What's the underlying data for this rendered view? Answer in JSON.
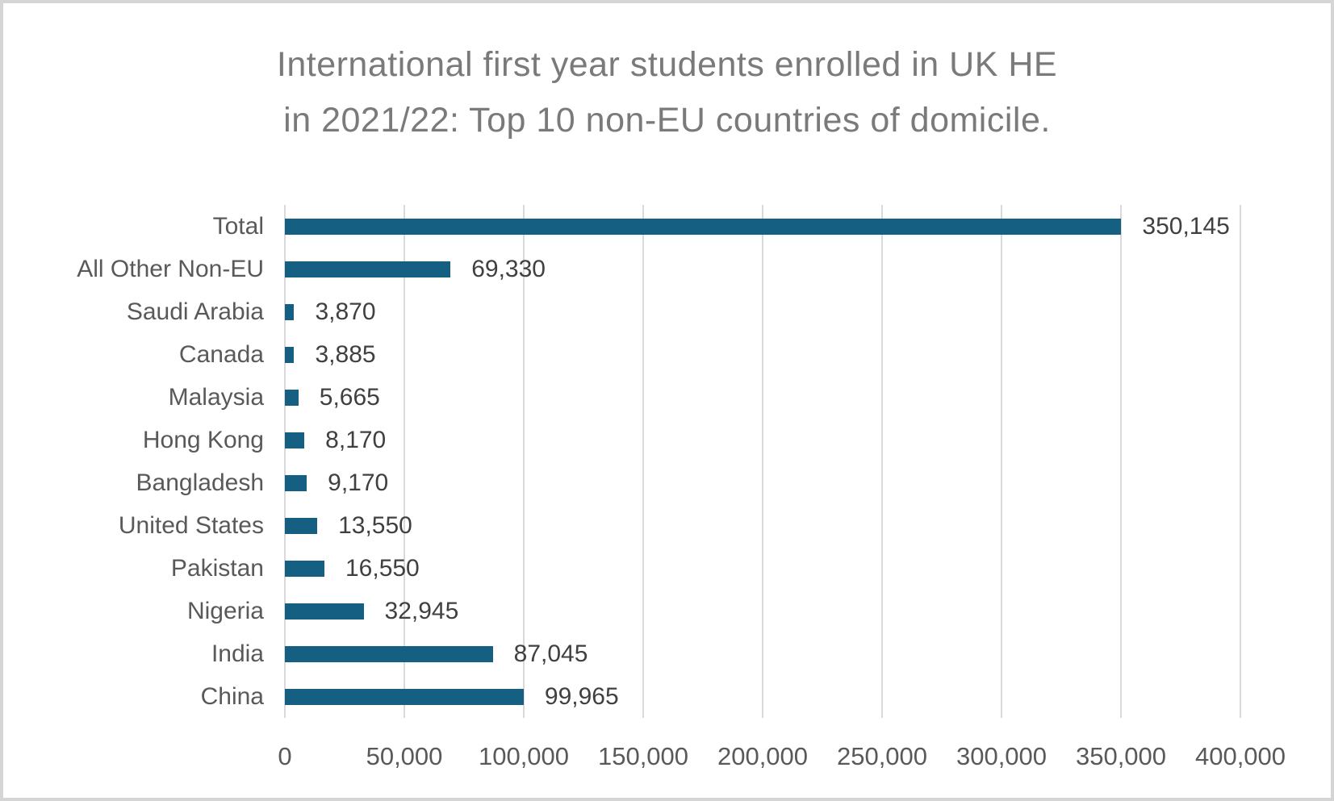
{
  "chart_data": {
    "type": "bar",
    "orientation": "horizontal",
    "title": "International first year students enrolled in UK HE in 2021/22: Top 10 non-EU countries of domicile.",
    "title_lines": [
      "International first year students enrolled in UK HE",
      "in 2021/22: Top 10 non-EU countries of domicile."
    ],
    "categories": [
      "Total",
      "All Other Non-EU",
      "Saudi Arabia",
      "Canada",
      "Malaysia",
      "Hong Kong",
      "Bangladesh",
      "United States",
      "Pakistan",
      "Nigeria",
      "India",
      "China"
    ],
    "values": [
      350145,
      69330,
      3870,
      3885,
      5665,
      8170,
      9170,
      13550,
      16550,
      32945,
      87045,
      99965
    ],
    "value_labels": [
      "350,145",
      "69,330",
      "3,870",
      "3,885",
      "5,665",
      "8,170",
      "9,170",
      "13,550",
      "16,550",
      "32,945",
      "87,045",
      "99,965"
    ],
    "x_ticks": [
      "0",
      "50,000",
      "100,000",
      "150,000",
      "200,000",
      "250,000",
      "300,000",
      "350,000",
      "400,000"
    ],
    "xlim": [
      0,
      400000
    ],
    "grid": true,
    "legend": "none",
    "data_label_position": "outside-end",
    "colors": {
      "bar": "#156082",
      "gridline": "#D9D9D9",
      "title_text": "#7A7A7A",
      "axis_text": "#595959",
      "data_label_text": "#404040",
      "frame_border": "#D5D5D5",
      "background": "#FFFFFF"
    }
  }
}
